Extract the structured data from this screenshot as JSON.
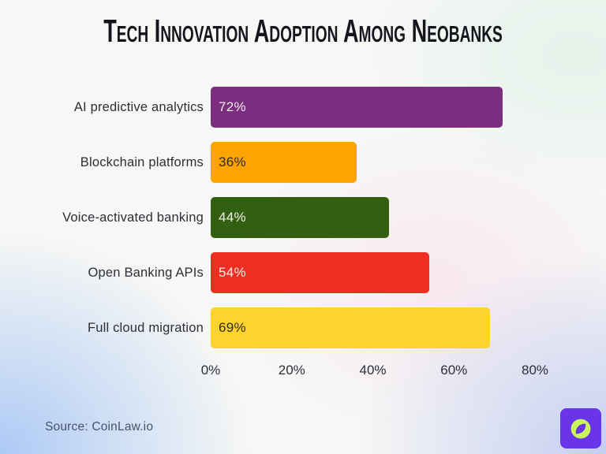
{
  "title": "Tech Innovation Adoption Among Neobanks",
  "source_text": "Source: CoinLaw.io",
  "chart_data": {
    "type": "bar",
    "orientation": "horizontal",
    "title": "Tech Innovation Adoption Among Neobanks",
    "categories": [
      "AI predictive analytics",
      "Blockchain platforms",
      "Voice-activated banking",
      "Open Banking APIs",
      "Full cloud migration"
    ],
    "values": [
      72,
      36,
      44,
      54,
      69
    ],
    "value_labels": [
      "72%",
      "36%",
      "44%",
      "54%",
      "69%"
    ],
    "bar_colors": [
      "#7B2D7F",
      "#FBA402",
      "#336010",
      "#EE2E20",
      "#FFD32E"
    ],
    "value_label_colors": [
      "#F4EEF3",
      "#322A1C",
      "#F0F2EB",
      "#FBEFEA",
      "#322A1C"
    ],
    "xlabel": "",
    "ylabel": "",
    "x_ticks": [
      "0%",
      "20%",
      "40%",
      "60%",
      "80%"
    ],
    "x_tick_values": [
      0,
      20,
      40,
      60,
      80
    ],
    "xlim": [
      0,
      80
    ],
    "grid": false,
    "legend": false
  },
  "branding": {
    "logo_icon": "compass-icon",
    "logo_bg_color": "#6934EA",
    "logo_circle_color": "#C8F65C"
  }
}
